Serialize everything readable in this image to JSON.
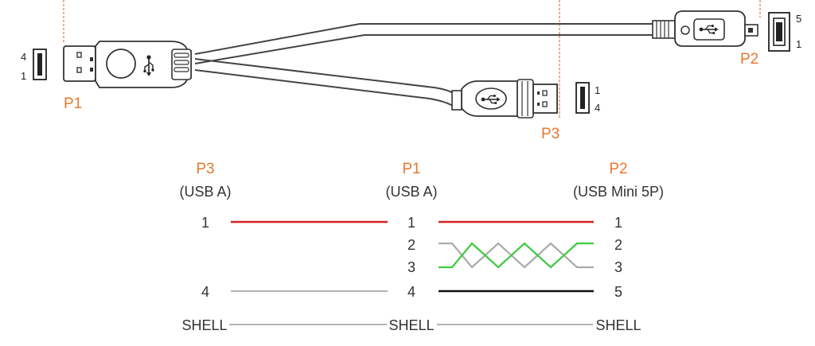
{
  "colors": {
    "accent": "#e8772e",
    "wire_red": "#d62020",
    "wire_green": "#3ecb3e",
    "wire_gray": "#aaaaaa",
    "wire_black": "#111111"
  },
  "cable": {
    "p1_label": "P1",
    "p2_label": "P2",
    "p3_label": "P3",
    "p1_pin_top": "4",
    "p1_pin_bottom": "1",
    "p2_pin_top": "5",
    "p2_pin_bottom": "1",
    "p3_pin_top": "1",
    "p3_pin_bottom": "4",
    "icons": [
      "usb-trident-icon",
      "usb-a-socket-icon",
      "usb-mini-socket-icon"
    ]
  },
  "wiring": {
    "headers": {
      "p3": {
        "name": "P3",
        "type": "(USB A)"
      },
      "p1": {
        "name": "P1",
        "type": "(USB A)"
      },
      "p2": {
        "name": "P2",
        "type": "(USB Mini 5P)"
      }
    },
    "rows": {
      "vbus": {
        "p3": "1",
        "p1": "1",
        "p2": "1"
      },
      "dminus": {
        "p1": "2",
        "p2": "2"
      },
      "dplus": {
        "p1": "3",
        "p2": "3"
      },
      "gnd": {
        "p3": "4",
        "p1": "4",
        "p2": "5"
      },
      "shell": {
        "p3": "SHELL",
        "p1": "SHELL",
        "p2": "SHELL"
      }
    }
  }
}
